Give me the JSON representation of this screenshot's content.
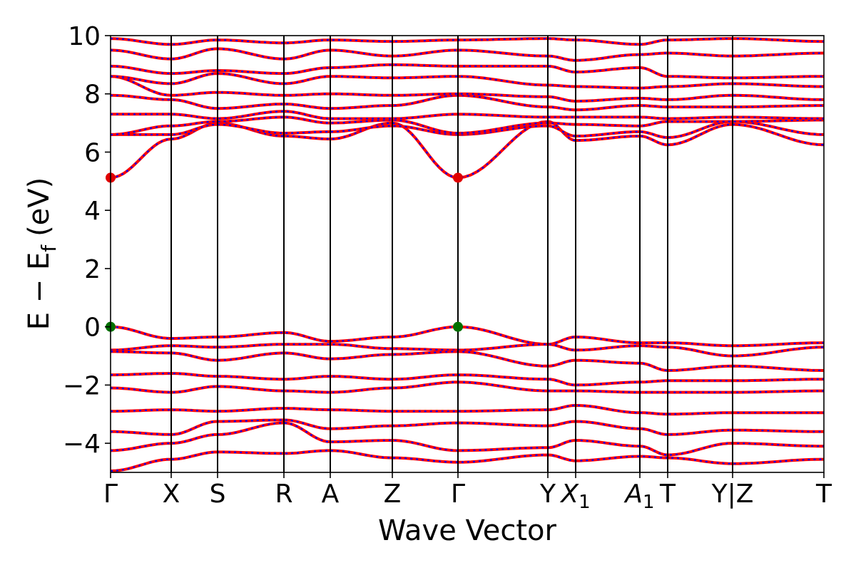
{
  "chart_data": {
    "type": "line",
    "title": "",
    "xlabel": "Wave Vector",
    "ylabel": {
      "main": "E − E",
      "sub": "f",
      "unit": "(eV)"
    },
    "ylim": [
      -5,
      10
    ],
    "yticks": [
      {
        "v": 10,
        "t": "10"
      },
      {
        "v": 8,
        "t": "8"
      },
      {
        "v": 6,
        "t": "6"
      },
      {
        "v": 4,
        "t": "4"
      },
      {
        "v": 2,
        "t": "2"
      },
      {
        "v": 0,
        "t": "0"
      },
      {
        "v": -2,
        "t": "−2"
      },
      {
        "v": -4,
        "t": "−4"
      }
    ],
    "kpoints": [
      {
        "k": 0.0,
        "label": "Γ"
      },
      {
        "k": 0.085,
        "label": "X"
      },
      {
        "k": 0.15,
        "label": "S"
      },
      {
        "k": 0.243,
        "label": "R"
      },
      {
        "k": 0.308,
        "label": "A"
      },
      {
        "k": 0.395,
        "label": "Z"
      },
      {
        "k": 0.487,
        "label": "Γ"
      },
      {
        "k": 0.613,
        "label": "Y"
      },
      {
        "k": 0.652,
        "label": "X",
        "sub": "1"
      },
      {
        "k": 0.742,
        "label": "A",
        "sub": "1"
      },
      {
        "k": 0.781,
        "label": "T"
      },
      {
        "k": 0.872,
        "label": "Y|Z"
      },
      {
        "k": 1.0,
        "label": "T"
      }
    ],
    "xlim": [
      0,
      1
    ],
    "band_colors": {
      "solid": "#ff0000",
      "dashed": "#0000ff"
    },
    "conduction_band_minimum": {
      "color": "#e00000",
      "points": [
        {
          "k": 0.0,
          "E": 5.12
        },
        {
          "k": 0.487,
          "E": 5.12
        }
      ]
    },
    "valence_band_maximum": {
      "color": "#007000",
      "points": [
        {
          "k": 0.0,
          "E": 0.0
        },
        {
          "k": 0.487,
          "E": 0.0
        }
      ]
    },
    "bands": [
      {
        "name": "valence-1",
        "E": [
          0.0,
          -0.4,
          -0.35,
          -0.2,
          -0.5,
          -0.35,
          0.0,
          -0.6,
          -0.35,
          -0.55,
          -0.55,
          -0.65,
          -0.55
        ]
      },
      {
        "name": "valence-2",
        "E": [
          -0.8,
          -0.65,
          -0.7,
          -0.6,
          -0.6,
          -0.75,
          -0.8,
          -0.6,
          -0.8,
          -0.65,
          -0.7,
          -1.0,
          -0.7
        ]
      },
      {
        "name": "valence-3",
        "E": [
          -0.85,
          -0.9,
          -1.15,
          -0.9,
          -1.1,
          -0.95,
          -0.85,
          -1.35,
          -1.15,
          -1.25,
          -1.5,
          -1.35,
          -1.5
        ]
      },
      {
        "name": "valence-4",
        "E": [
          -1.65,
          -1.6,
          -1.7,
          -1.8,
          -1.7,
          -1.8,
          -1.65,
          -1.8,
          -2.0,
          -1.9,
          -1.85,
          -1.85,
          -1.8
        ]
      },
      {
        "name": "valence-5",
        "E": [
          -2.1,
          -2.25,
          -2.05,
          -2.2,
          -2.25,
          -2.1,
          -1.9,
          -2.2,
          -2.2,
          -2.25,
          -2.25,
          -2.25,
          -2.2
        ]
      },
      {
        "name": "valence-6",
        "E": [
          -2.9,
          -2.85,
          -2.9,
          -2.8,
          -2.85,
          -2.9,
          -2.9,
          -2.85,
          -2.7,
          -2.95,
          -3.0,
          -2.95,
          -2.95
        ]
      },
      {
        "name": "valence-7",
        "E": [
          -3.6,
          -3.7,
          -3.25,
          -3.2,
          -3.5,
          -3.4,
          -3.3,
          -3.4,
          -3.25,
          -3.5,
          -3.7,
          -3.55,
          -3.6
        ]
      },
      {
        "name": "valence-8",
        "E": [
          -4.25,
          -4.0,
          -3.7,
          -3.3,
          -3.95,
          -3.9,
          -4.25,
          -4.15,
          -3.9,
          -4.1,
          -4.4,
          -4.0,
          -4.1
        ]
      },
      {
        "name": "valence-9",
        "E": [
          -4.95,
          -4.55,
          -4.3,
          -4.35,
          -4.25,
          -4.5,
          -4.65,
          -4.4,
          -4.6,
          -4.45,
          -4.5,
          -4.7,
          -4.55
        ]
      },
      {
        "name": "conduction-1",
        "E": [
          5.12,
          6.45,
          7.0,
          6.55,
          6.45,
          7.0,
          5.12,
          7.05,
          6.4,
          6.55,
          6.25,
          6.95,
          6.25
        ]
      },
      {
        "name": "conduction-2",
        "E": [
          6.6,
          6.6,
          6.95,
          6.65,
          6.7,
          6.9,
          6.6,
          6.9,
          6.55,
          6.7,
          6.5,
          7.05,
          6.6
        ]
      },
      {
        "name": "conduction-3",
        "E": [
          6.6,
          6.9,
          7.05,
          7.2,
          7.0,
          7.1,
          6.65,
          7.0,
          6.95,
          6.9,
          7.05,
          7.05,
          7.1
        ]
      },
      {
        "name": "conduction-4",
        "E": [
          7.3,
          7.3,
          7.15,
          7.4,
          7.15,
          7.15,
          7.3,
          7.2,
          7.2,
          7.2,
          7.15,
          7.2,
          7.15
        ]
      },
      {
        "name": "conduction-5",
        "E": [
          7.95,
          7.8,
          7.5,
          7.65,
          7.5,
          7.6,
          7.95,
          7.55,
          7.45,
          7.6,
          7.55,
          7.55,
          7.6
        ]
      },
      {
        "name": "conduction-6",
        "E": [
          8.6,
          7.95,
          8.05,
          7.95,
          8.0,
          7.95,
          8.0,
          7.9,
          7.75,
          7.85,
          7.8,
          7.95,
          7.8
        ]
      },
      {
        "name": "conduction-7",
        "E": [
          8.6,
          8.35,
          8.7,
          8.35,
          8.6,
          8.55,
          8.6,
          8.3,
          8.25,
          8.2,
          8.25,
          8.35,
          8.25
        ]
      },
      {
        "name": "conduction-8",
        "E": [
          8.95,
          8.7,
          8.8,
          8.7,
          8.9,
          9.0,
          8.95,
          8.95,
          8.75,
          8.9,
          8.6,
          8.55,
          8.6
        ]
      },
      {
        "name": "conduction-9",
        "E": [
          9.5,
          9.2,
          9.55,
          9.2,
          9.5,
          9.3,
          9.5,
          9.3,
          9.15,
          9.35,
          9.4,
          9.3,
          9.4
        ]
      },
      {
        "name": "conduction-10",
        "E": [
          9.9,
          9.7,
          9.85,
          9.75,
          9.85,
          9.8,
          9.85,
          9.9,
          9.85,
          9.7,
          9.85,
          9.9,
          9.8
        ]
      }
    ]
  }
}
